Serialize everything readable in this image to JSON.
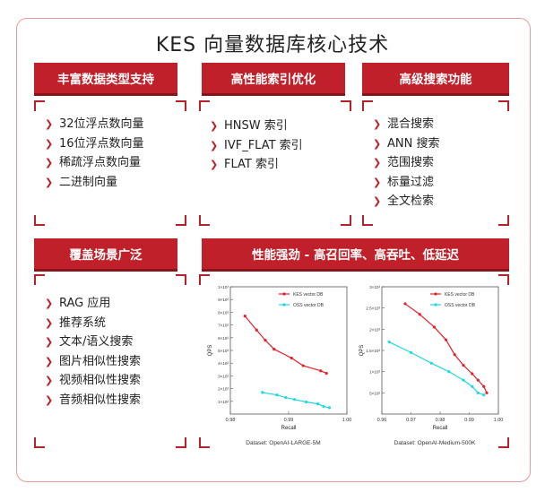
{
  "title": "KES 向量数据库核心技术",
  "cards": {
    "data_types": {
      "heading": "丰富数据类型支持",
      "items": [
        "32位浮点数向量",
        "16位浮点数向量",
        "稀疏浮点数向量",
        "二进制向量"
      ]
    },
    "index": {
      "heading": "高性能索引优化",
      "items": [
        "HNSW 索引",
        "IVF_FLAT 索引",
        "FLAT 索引"
      ]
    },
    "search": {
      "heading": "高级搜索功能",
      "items": [
        "混合搜索",
        "ANN 搜索",
        "范围搜索",
        "标量过滤",
        "全文检索"
      ]
    },
    "scenarios": {
      "heading": "覆盖场景广泛",
      "items": [
        "RAG 应用",
        "推荐系统",
        "文本/语义搜索",
        "图片相似性搜索",
        "视频相似性搜索",
        "音频相似性搜索"
      ]
    },
    "performance": {
      "heading": "性能强劲 - 高召回率、高吞吐、低延迟"
    }
  },
  "colors": {
    "accent": "#c0202a",
    "kes": "#e8202a",
    "oss": "#20d8e0"
  },
  "chart_data": [
    {
      "type": "line",
      "title": "",
      "caption": "Dataset: OpenAI-LARGE-5M",
      "xlabel": "Recall",
      "ylabel": "QPS",
      "xlim": [
        0.98,
        1.0
      ],
      "ylim": [
        0,
        1000
      ],
      "x_ticks": [
        "0.98",
        "0.99",
        "1.00"
      ],
      "y_ticks": [
        "1×10³",
        "9×10²",
        "8×10²",
        "7×10²",
        "6×10²",
        "5×10²",
        "4×10²",
        "3×10²",
        "2×10²",
        "1×10²"
      ],
      "y_tick_values": [
        1000,
        900,
        800,
        700,
        600,
        500,
        400,
        300,
        200,
        100
      ],
      "legend_position": "top-right",
      "series": [
        {
          "name": "KES vector DB",
          "x": [
            0.9825,
            0.9845,
            0.986,
            0.9875,
            0.9905,
            0.9925,
            0.9955,
            0.9965
          ],
          "y": [
            770,
            660,
            580,
            510,
            440,
            380,
            340,
            320
          ]
        },
        {
          "name": "OSS vector DB",
          "x": [
            0.9855,
            0.988,
            0.9895,
            0.991,
            0.993,
            0.995,
            0.996,
            0.997
          ],
          "y": [
            170,
            150,
            130,
            115,
            95,
            80,
            60,
            50
          ]
        }
      ]
    },
    {
      "type": "line",
      "title": "",
      "caption": "Dataset: OpenAI-Medium-500K",
      "xlabel": "Recall",
      "ylabel": "QPS",
      "xlim": [
        0.96,
        1.0
      ],
      "ylim": [
        0,
        3000
      ],
      "x_ticks": [
        "0.96",
        "0.98",
        "1.00"
      ],
      "x_minor_ticks": [
        "0.97",
        "0.99"
      ],
      "y_ticks": [
        "3×10³",
        "2.5×10³",
        "2×10³",
        "1.5×10³",
        "1×10³",
        "5×10²"
      ],
      "y_tick_values": [
        3000,
        2500,
        2000,
        1500,
        1000,
        500
      ],
      "legend_position": "top-right",
      "series": [
        {
          "name": "KES vector DB",
          "x": [
            0.968,
            0.973,
            0.978,
            0.982,
            0.985,
            0.988,
            0.991,
            0.993,
            0.995,
            0.996
          ],
          "y": [
            2600,
            2350,
            2050,
            1750,
            1400,
            1150,
            950,
            800,
            650,
            500
          ]
        },
        {
          "name": "OSS vector DB",
          "x": [
            0.9625,
            0.97,
            0.977,
            0.983,
            0.988,
            0.991,
            0.993,
            0.995
          ],
          "y": [
            1700,
            1450,
            1200,
            1000,
            800,
            650,
            500,
            450
          ]
        }
      ]
    }
  ]
}
